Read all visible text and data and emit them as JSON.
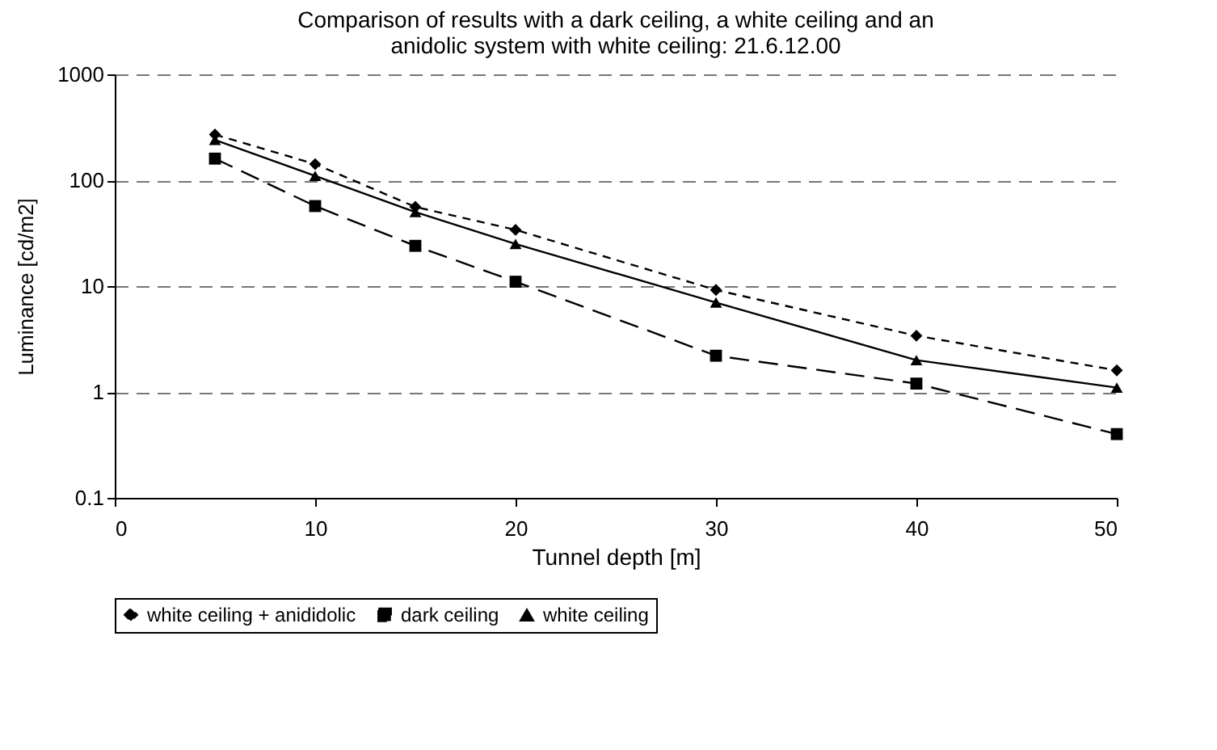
{
  "chart_data": {
    "type": "line",
    "title": [
      "Comparison of results with a dark ceiling, a white ceiling and an",
      "anidolic system with white ceiling: 21.6.12.00"
    ],
    "xlabel": "Tunnel depth [m]",
    "ylabel": "Luminance [cd/m2]",
    "x": [
      5,
      10,
      15,
      20,
      30,
      40,
      50
    ],
    "series": [
      {
        "name": "white ceiling + anididolic",
        "color": "#000000",
        "marker": "diamond",
        "line_style": "dashed",
        "values": [
          270,
          142,
          56,
          34,
          9.2,
          3.4,
          1.6
        ]
      },
      {
        "name": "dark ceiling",
        "color": "#000000",
        "marker": "square",
        "line_style": "longdash",
        "values": [
          160,
          57,
          24,
          11,
          2.2,
          1.2,
          0.4
        ]
      },
      {
        "name": "white ceiling",
        "color": "#000000",
        "marker": "triangle",
        "line_style": "solid",
        "values": [
          240,
          110,
          50,
          25,
          7,
          2,
          1.1
        ]
      }
    ],
    "xlim": [
      0,
      50
    ],
    "xticks": [
      0,
      10,
      20,
      30,
      40,
      50
    ],
    "ylim": [
      0.1,
      1000
    ],
    "yticks": [
      0.1,
      1,
      10,
      100,
      1000
    ],
    "log": "y",
    "grid": "y",
    "legend": "bottom"
  }
}
